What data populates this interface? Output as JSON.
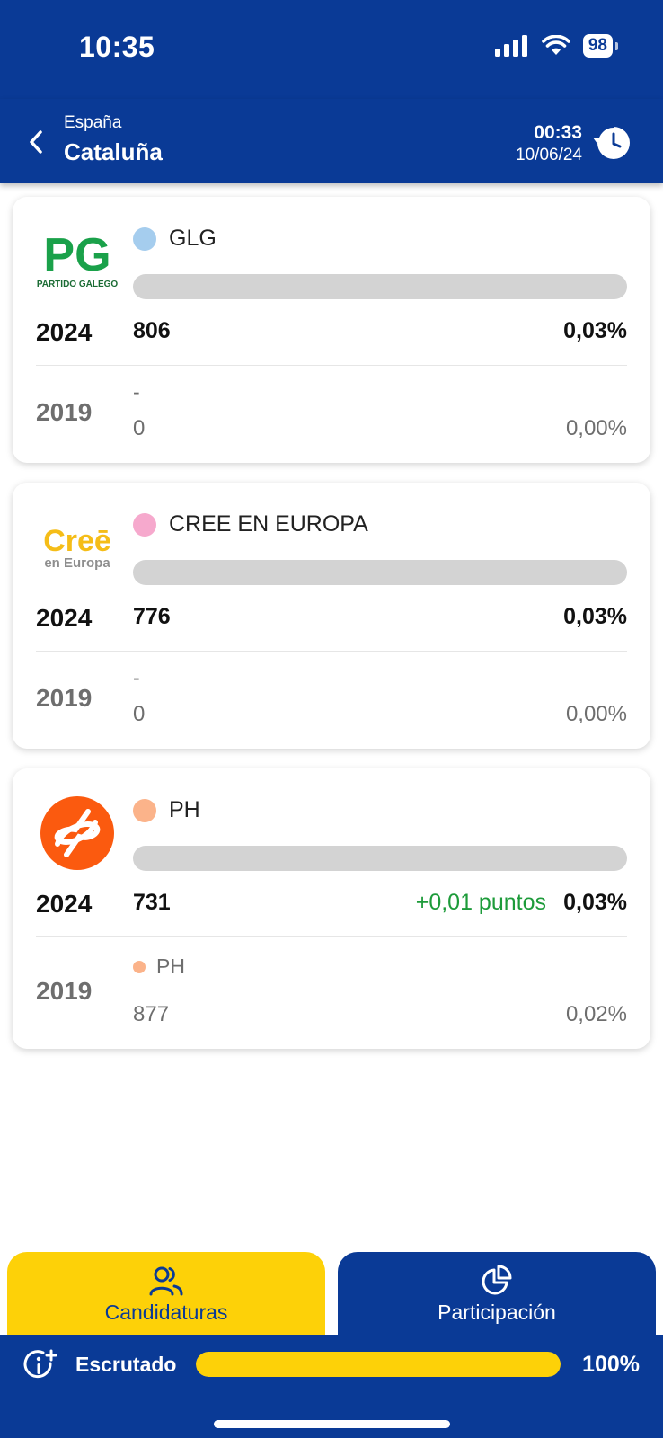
{
  "status_bar": {
    "time": "10:35",
    "battery": "98",
    "icons": [
      "signal-icon",
      "wifi-icon",
      "battery-icon"
    ]
  },
  "header": {
    "back_icon": "chevron-left-icon",
    "subtitle": "España",
    "title": "Cataluña",
    "update_time": "00:33",
    "update_date": "10/06/24",
    "refresh_icon": "history-clock-icon"
  },
  "cards": [
    {
      "logo_text": "PG",
      "logo_caption": "PARTIDO GALEGO",
      "party": "GLG",
      "dot_color": "#a5cdee",
      "bar_fraction": 0.0003,
      "year_now": "2024",
      "votes_now": "806",
      "pct_now": "0,03%",
      "delta": "",
      "year_prev": "2019",
      "prev_party": "-",
      "prev_votes": "0",
      "pct_prev": "0,00%"
    },
    {
      "logo_text": "Creē",
      "logo_caption": "en Europa",
      "party": "CREE EN EUROPA",
      "dot_color": "#f6a9cd",
      "bar_fraction": 0.0003,
      "year_now": "2024",
      "votes_now": "776",
      "pct_now": "0,03%",
      "delta": "",
      "year_prev": "2019",
      "prev_party": "-",
      "prev_votes": "0",
      "pct_prev": "0,00%"
    },
    {
      "logo_text": "",
      "logo_caption": "",
      "party": "PH",
      "dot_color": "#fbb38a",
      "bar_fraction": 0.0003,
      "year_now": "2024",
      "votes_now": "731",
      "pct_now": "0,03%",
      "delta": "+0,01 puntos",
      "year_prev": "2019",
      "prev_party": "PH",
      "prev_dot_color": "#fbb38a",
      "prev_votes": "877",
      "pct_prev": "0,02%"
    }
  ],
  "tabs": {
    "candidaturas": {
      "label": "Candidaturas",
      "icon": "users-icon"
    },
    "participacion": {
      "label": "Participación",
      "icon": "pie-chart-icon"
    }
  },
  "footer": {
    "label": "Escrutado",
    "icon": "info-plus-icon",
    "progress_pct": "100%",
    "progress_fraction": 1.0
  },
  "colors": {
    "brand_blue": "#0a3a96",
    "accent_yellow": "#fdd108",
    "positive_green": "#1d9b3a"
  }
}
